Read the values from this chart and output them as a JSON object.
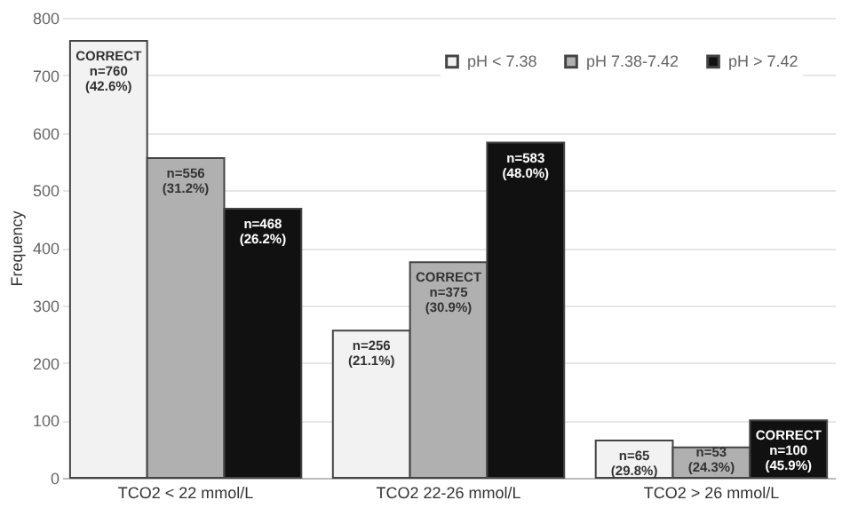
{
  "chart_data": {
    "type": "bar",
    "ylabel": "Frequency",
    "categories": [
      "TCO2 < 22 mmol/L",
      "TCO2 22-26 mmol/L",
      "TCO2 > 26 mmol/L"
    ],
    "series": [
      {
        "name": "pH < 7.38",
        "color": "#f2f2f2",
        "values": [
          760,
          256,
          65
        ],
        "value_labels": [
          "CORRECT\nn=760\n(42.6%)",
          "n=256\n(21.1%)",
          "n=65\n(29.8%)"
        ]
      },
      {
        "name": "pH 7.38-7.42",
        "color": "#b0b0b0",
        "values": [
          556,
          375,
          53
        ],
        "value_labels": [
          "n=556\n(31.2%)",
          "CORRECT\nn=375\n(30.9%)",
          "n=53\n(24.3%)"
        ]
      },
      {
        "name": "pH > 7.42",
        "color": "#111111",
        "values": [
          468,
          583,
          100
        ],
        "value_labels": [
          "n=468\n(26.2%)",
          "n=583\n(48.0%)",
          "CORRECT\nn=100\n(45.9%)"
        ]
      }
    ],
    "ylim": [
      0,
      800
    ],
    "yticks": [
      0,
      100,
      200,
      300,
      400,
      500,
      600,
      700,
      800
    ],
    "grid": "y",
    "legend": "top right"
  }
}
